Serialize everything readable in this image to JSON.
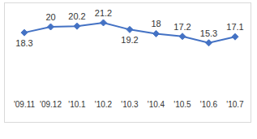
{
  "chart_data": {
    "type": "line",
    "categories": [
      "'09.11",
      "'09.12",
      "'10.1",
      "'10.2",
      "'10.3",
      "'10.4",
      "'10.5",
      "'10.6",
      "'10.7"
    ],
    "values": [
      18.3,
      20,
      20.2,
      21.2,
      19.2,
      18,
      17.2,
      15.3,
      17.1
    ],
    "color": "#4472c4",
    "marker": "diamond",
    "ylim": [
      0,
      25
    ],
    "data_labels": true,
    "tick_labels": "x",
    "grid": false
  }
}
